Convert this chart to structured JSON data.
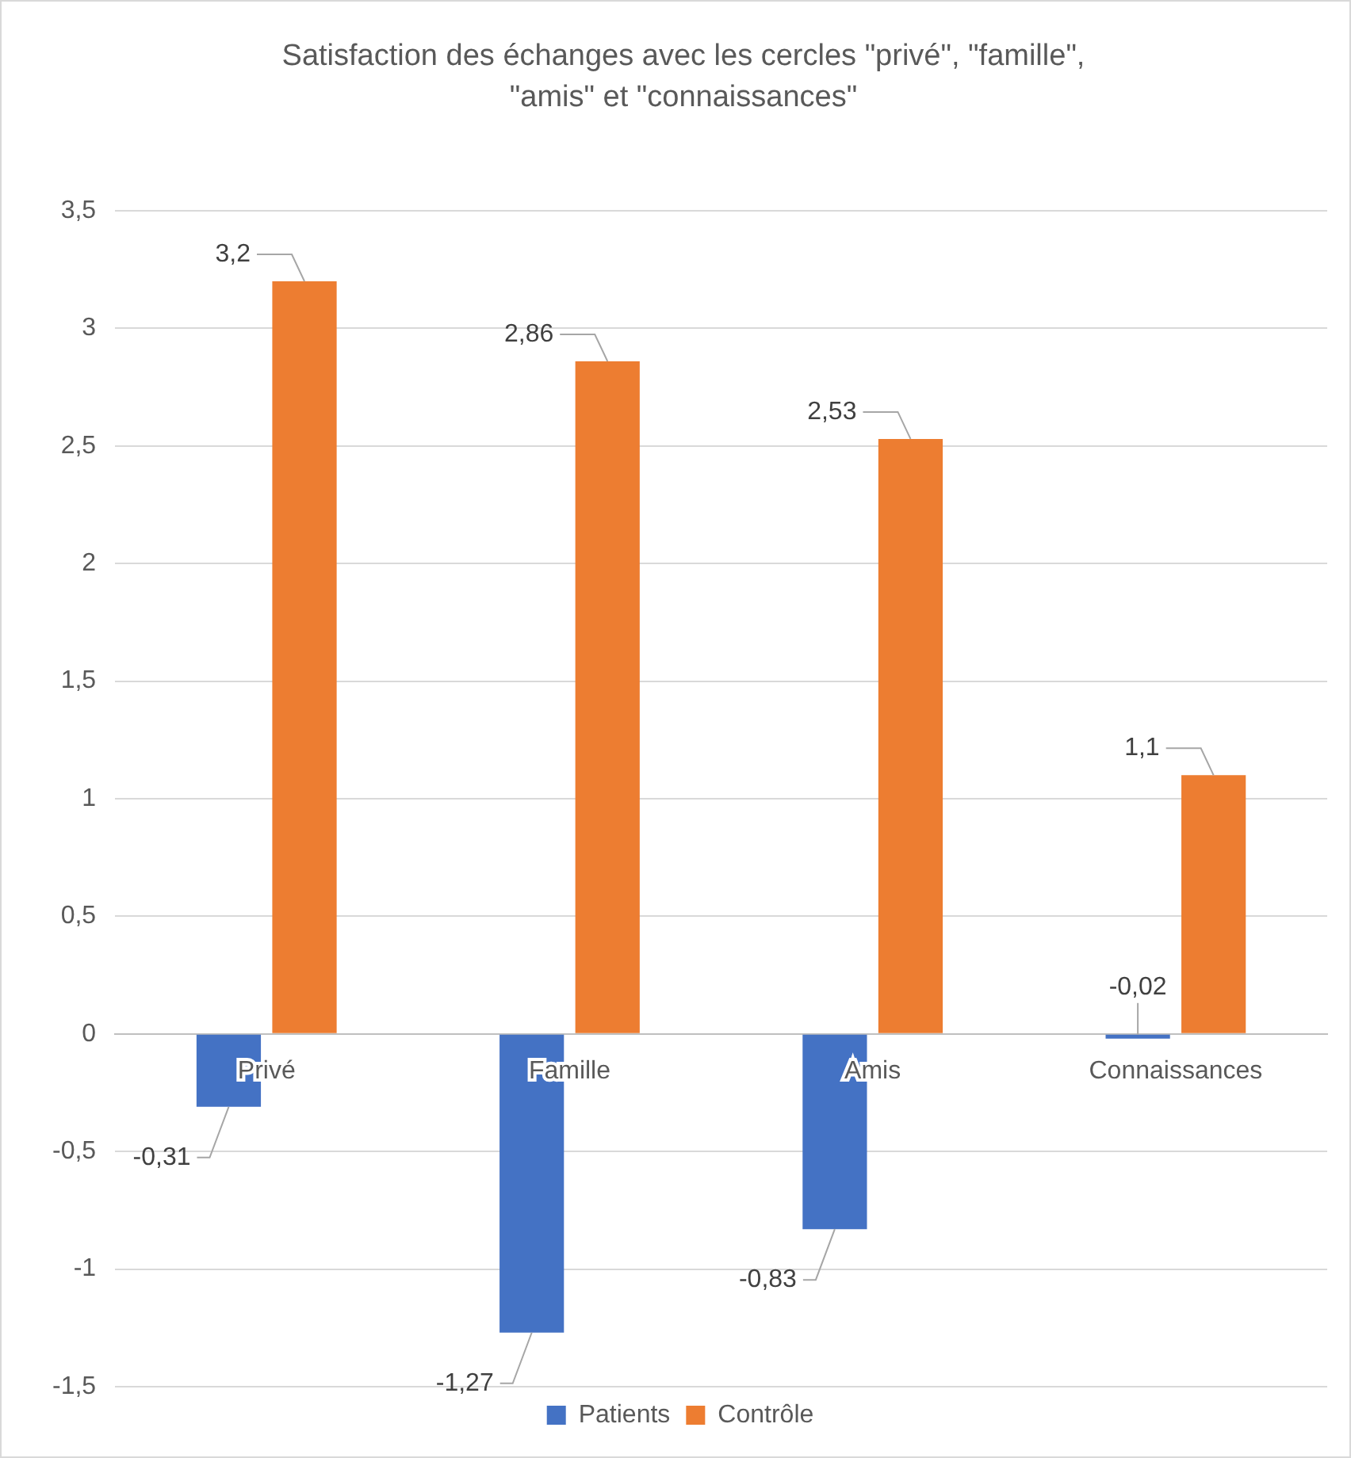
{
  "chart_data": {
    "type": "bar",
    "title": "Satisfaction des échanges avec les cercles \"privé\", \"famille\", \"amis\" et \"connaissances\"",
    "categories": [
      "Privé",
      "Famille",
      "Amis",
      "Connaissances"
    ],
    "series": [
      {
        "name": "Patients",
        "color": "#4472c4",
        "values": [
          -0.31,
          -1.27,
          -0.83,
          -0.02
        ],
        "value_labels": [
          "-0,31",
          "-1,27",
          "-0,83",
          "-0,02"
        ]
      },
      {
        "name": "Contrôle",
        "color": "#ed7d31",
        "values": [
          3.2,
          2.86,
          2.53,
          1.1
        ],
        "value_labels": [
          "3,2",
          "2,86",
          "2,53",
          "1,1"
        ]
      }
    ],
    "ylim": [
      -1.5,
      3.5
    ],
    "yticks": [
      {
        "value": -1.5,
        "label": "-1,5"
      },
      -1,
      {
        "value": -0.5,
        "label": "-0,5"
      },
      0,
      {
        "value": 0.5,
        "label": "0,5"
      },
      1,
      {
        "value": 1.5,
        "label": "1,5"
      },
      2,
      {
        "value": 2.5,
        "label": "2,5"
      },
      3,
      {
        "value": 3.5,
        "label": "3,5"
      }
    ],
    "grid": "y",
    "legend": "bottom",
    "data_labels": true
  }
}
